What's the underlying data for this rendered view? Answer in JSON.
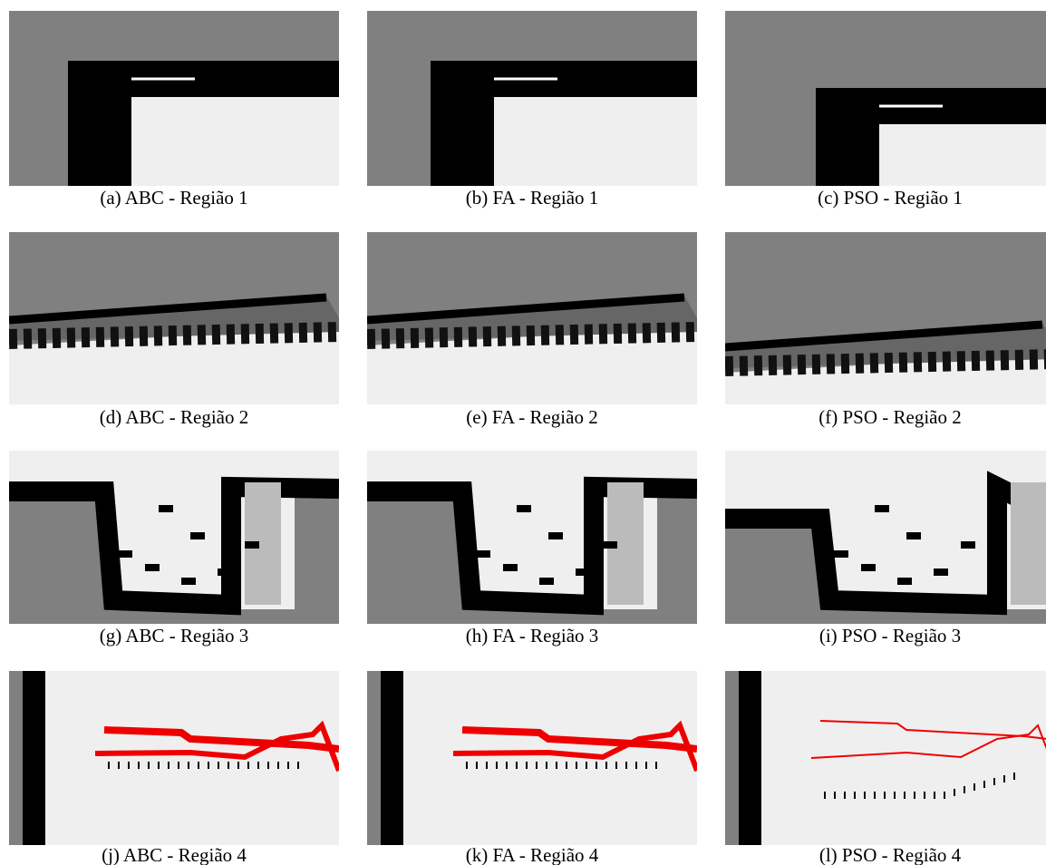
{
  "figure": {
    "panels": [
      {
        "caption": "(a) ABC - Região 1"
      },
      {
        "caption": "(b) FA - Região 1"
      },
      {
        "caption": "(c) PSO - Região 1"
      },
      {
        "caption": "(d) ABC - Região 2"
      },
      {
        "caption": "(e) FA - Região 2"
      },
      {
        "caption": "(f) PSO - Região 2"
      },
      {
        "caption": "(g) ABC - Região 3"
      },
      {
        "caption": "(h) FA - Região 3"
      },
      {
        "caption": "(i) PSO - Região 3"
      },
      {
        "caption": "(j) ABC - Região 4"
      },
      {
        "caption": "(k) FA - Região 4"
      },
      {
        "caption": "(l) PSO - Região 4"
      }
    ]
  }
}
